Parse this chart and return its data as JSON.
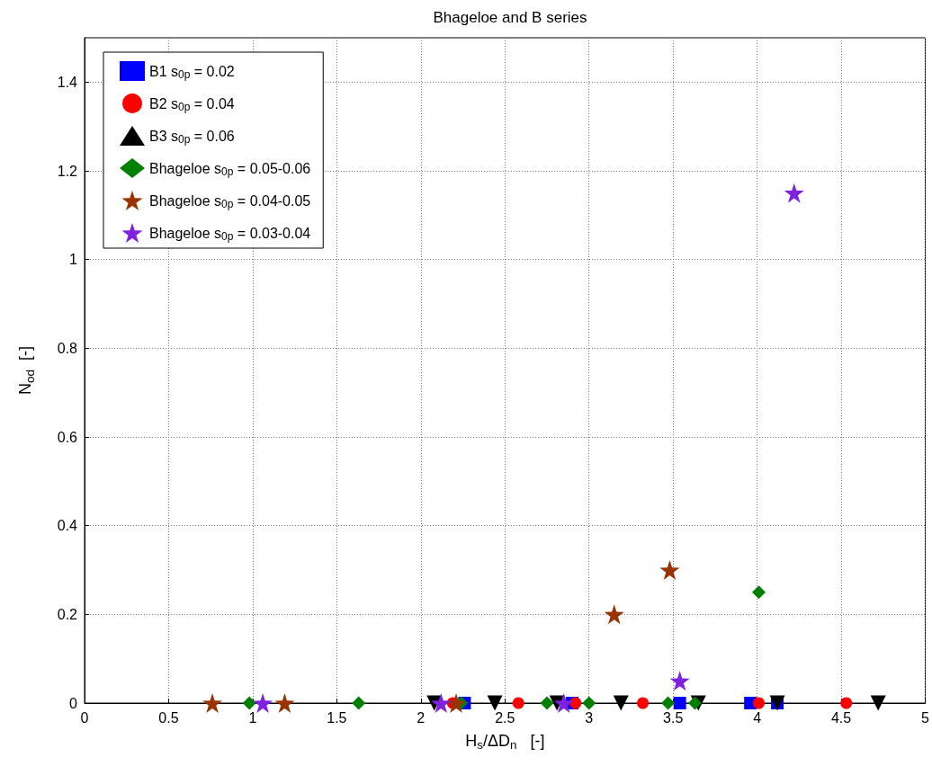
{
  "chart_data": {
    "type": "scatter",
    "title": "Bhageloe and B series",
    "xlabel": "H$_{s}$/ΔD$_{n}$   [-]",
    "ylabel": "N$_{od}$  [-]",
    "xlim": [
      0,
      5
    ],
    "xticks": [
      0,
      0.5,
      1,
      1.5,
      2,
      2.5,
      3,
      3.5,
      4,
      4.5,
      5
    ],
    "ylim": [
      0,
      1.5
    ],
    "yticks": [
      0,
      0.2,
      0.4,
      0.6,
      0.8,
      1,
      1.2,
      1.4
    ],
    "grid": true,
    "legend": "top left",
    "series": [
      {
        "name": "B1 s$_{0p}$ = 0.02",
        "color": "#0000ff",
        "marker": "square",
        "x": [
          2.26,
          2.9,
          3.54,
          3.96,
          4.12
        ],
        "values": [
          0,
          0,
          0,
          0,
          0
        ]
      },
      {
        "name": "B2 s$_{0p}$ = 0.04",
        "color": "#ff0000",
        "marker": "circle",
        "x": [
          2.19,
          2.58,
          2.92,
          3.32,
          4.01,
          4.53
        ],
        "values": [
          0,
          0,
          0,
          0,
          0,
          0
        ]
      },
      {
        "name": "B3 s$_{0p}$ = 0.06",
        "color": "#000000",
        "marker": "triangle",
        "x": [
          2.08,
          2.44,
          2.81,
          3.19,
          3.65,
          4.12,
          4.72
        ],
        "values": [
          0,
          0,
          0,
          0,
          0,
          0,
          0
        ]
      },
      {
        "name": "Bhageloe s$_{0p}$ = 0.05-0.06",
        "color": "#008000",
        "marker": "diamond",
        "x": [
          0.98,
          1.63,
          2.24,
          2.75,
          3.0,
          3.47,
          3.63,
          4.01
        ],
        "values": [
          0,
          0,
          0,
          0,
          0,
          0,
          0,
          0.25
        ]
      },
      {
        "name": "Bhageloe s$_{0p}$ = 0.04-0.05",
        "color": "#993300",
        "marker": "star",
        "x": [
          0.76,
          1.19,
          2.21,
          3.15,
          3.48
        ],
        "values": [
          0,
          0,
          0,
          0.2,
          0.3
        ]
      },
      {
        "name": "Bhageloe s$_{0p}$ = 0.03-0.04",
        "color": "#8020e0",
        "marker": "star",
        "x": [
          1.06,
          2.12,
          2.85,
          3.54,
          4.22
        ],
        "values": [
          0,
          0,
          0,
          0.05,
          1.15
        ]
      }
    ]
  }
}
